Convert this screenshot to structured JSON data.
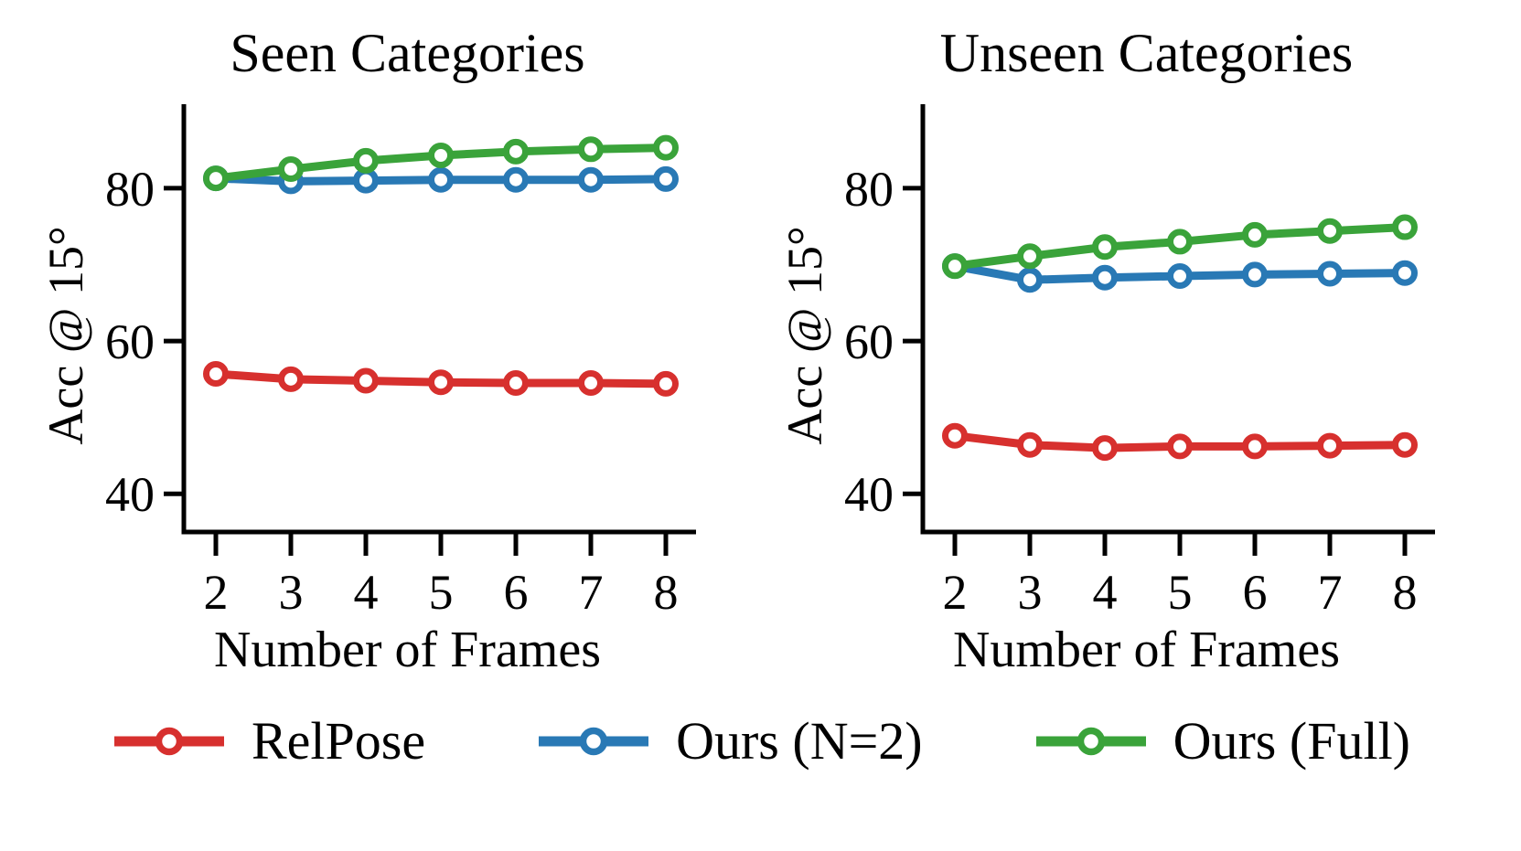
{
  "page": {
    "background": "#ffffff"
  },
  "legend": {
    "items": [
      {
        "label": "RelPose",
        "color": "#d7302e",
        "marker": "open-circle"
      },
      {
        "label": "Ours (N=2)",
        "color": "#2979b5",
        "marker": "open-circle"
      },
      {
        "label": "Ours (Full)",
        "color": "#3aa33a",
        "marker": "open-circle"
      }
    ]
  },
  "chart_data": [
    {
      "type": "line",
      "title": "Seen Categories",
      "xlabel": "Number of Frames",
      "ylabel": "Acc @ 15°",
      "x": [
        2,
        3,
        4,
        5,
        6,
        7,
        8
      ],
      "xtick_labels": [
        "2",
        "3",
        "4",
        "5",
        "6",
        "7",
        "8"
      ],
      "yticks": [
        40,
        60,
        80
      ],
      "ylim": [
        35,
        91
      ],
      "grid": false,
      "legend_position": "shared-below",
      "series": [
        {
          "name": "RelPose",
          "color": "#d7302e",
          "values": [
            55.7,
            55.0,
            54.8,
            54.6,
            54.5,
            54.5,
            54.4
          ]
        },
        {
          "name": "Ours (N=2)",
          "color": "#2979b5",
          "values": [
            81.3,
            80.9,
            81.0,
            81.1,
            81.1,
            81.1,
            81.2
          ]
        },
        {
          "name": "Ours (Full)",
          "color": "#3aa33a",
          "values": [
            81.3,
            82.5,
            83.6,
            84.3,
            84.8,
            85.1,
            85.3
          ]
        }
      ]
    },
    {
      "type": "line",
      "title": "Unseen Categories",
      "xlabel": "Number of Frames",
      "ylabel": "Acc @ 15°",
      "x": [
        2,
        3,
        4,
        5,
        6,
        7,
        8
      ],
      "xtick_labels": [
        "2",
        "3",
        "4",
        "5",
        "6",
        "7",
        "8"
      ],
      "yticks": [
        40,
        60,
        80
      ],
      "ylim": [
        35,
        91
      ],
      "grid": false,
      "legend_position": "shared-below",
      "series": [
        {
          "name": "RelPose",
          "color": "#d7302e",
          "values": [
            47.6,
            46.4,
            46.0,
            46.2,
            46.2,
            46.3,
            46.4
          ]
        },
        {
          "name": "Ours (N=2)",
          "color": "#2979b5",
          "values": [
            69.8,
            68.0,
            68.3,
            68.5,
            68.7,
            68.8,
            68.9
          ]
        },
        {
          "name": "Ours (Full)",
          "color": "#3aa33a",
          "values": [
            69.8,
            71.1,
            72.3,
            73.0,
            73.9,
            74.4,
            74.9
          ]
        }
      ]
    }
  ]
}
